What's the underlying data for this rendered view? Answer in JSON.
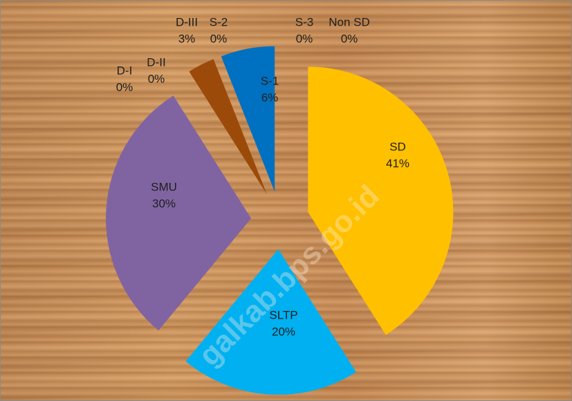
{
  "chart_data": {
    "type": "pie",
    "watermark": "galkab.bps.go.id",
    "categories": [
      "SD",
      "SLTP",
      "SMU",
      "D-I",
      "D-II",
      "D-III",
      "S-2",
      "S-1",
      "S-3",
      "Non SD"
    ],
    "values": [
      41,
      20,
      30,
      0,
      0,
      3,
      0,
      6,
      0,
      0
    ],
    "value_labels": [
      "41%",
      "20%",
      "30%",
      "0%",
      "0%",
      "3%",
      "0%",
      "6%",
      "0%",
      "0%"
    ],
    "colors": [
      "#ffc000",
      "#00b0f0",
      "#8064a2",
      "#4f81bd",
      "#c0504d",
      "#9c4a0a",
      "#9bbb59",
      "#0070c0",
      "#f79646",
      "#4bacc6"
    ]
  }
}
